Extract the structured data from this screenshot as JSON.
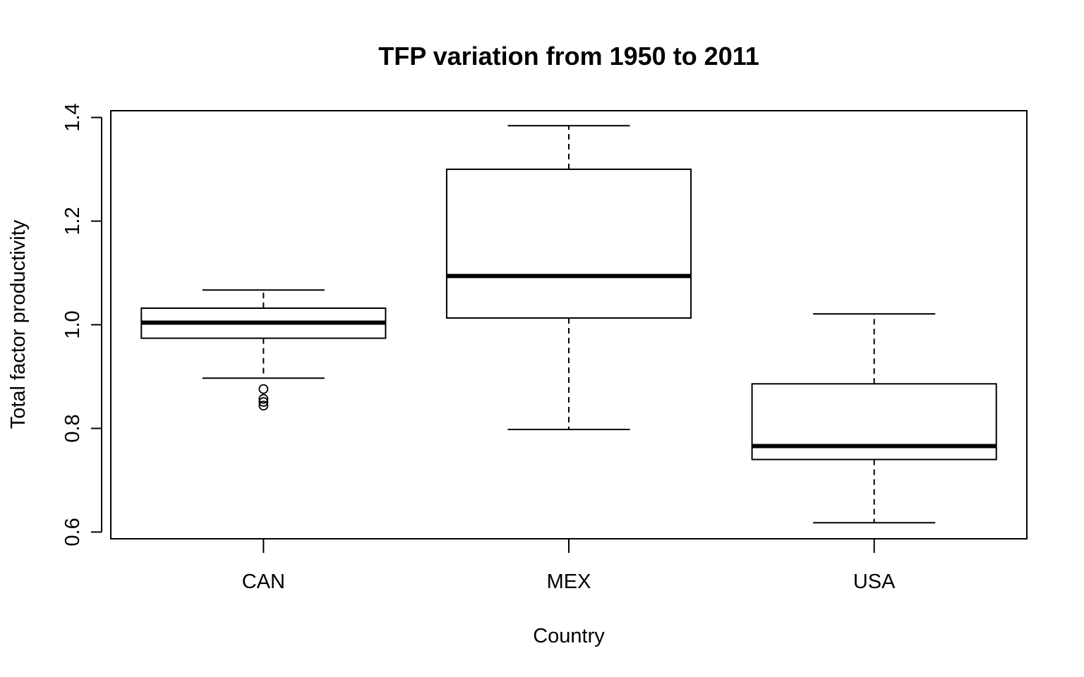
{
  "chart_data": {
    "type": "boxplot",
    "title": "TFP variation from 1950 to 2011",
    "xlabel": "Country",
    "ylabel": "Total factor productivity",
    "categories": [
      "CAN",
      "MEX",
      "USA"
    ],
    "ylim": [
      0.587,
      1.413
    ],
    "yticks": [
      0.6,
      0.8,
      1.0,
      1.2,
      1.4
    ],
    "ytick_labels": [
      "0.6",
      "0.8",
      "1.0",
      "1.2",
      "1.4"
    ],
    "boxes": [
      {
        "name": "CAN",
        "whisker_low": 0.897,
        "q1": 0.974,
        "median": 1.004,
        "q3": 1.032,
        "whisker_high": 1.067,
        "outliers": [
          0.876,
          0.857,
          0.851,
          0.844
        ]
      },
      {
        "name": "MEX",
        "whisker_low": 0.798,
        "q1": 1.013,
        "median": 1.094,
        "q3": 1.3,
        "whisker_high": 1.384,
        "outliers": []
      },
      {
        "name": "USA",
        "whisker_low": 0.618,
        "q1": 0.74,
        "median": 0.766,
        "q3": 0.886,
        "whisker_high": 1.021,
        "outliers": []
      }
    ],
    "grid": false,
    "colors": {
      "line": "#000000",
      "fill": "#ffffff"
    }
  }
}
